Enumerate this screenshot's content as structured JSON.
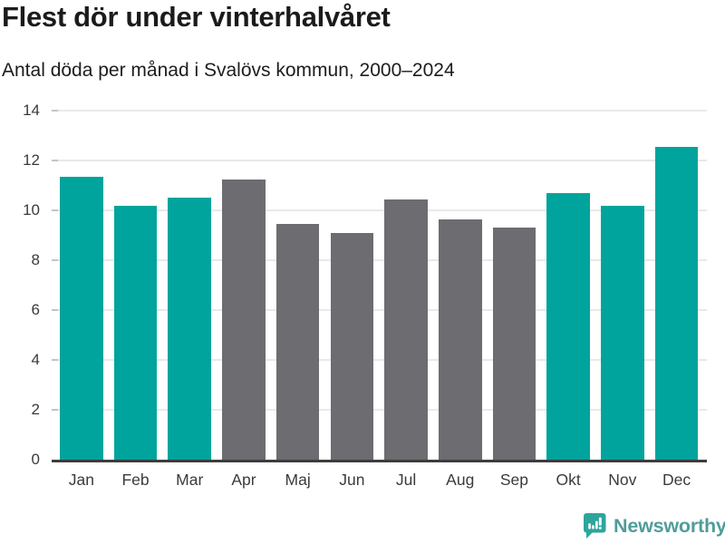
{
  "header": {
    "title": "Flest dör under vinterhalvåret",
    "subtitle": "Antal döda per månad i Svalövs kommun, 2000–2024"
  },
  "chart_data": {
    "type": "bar",
    "title": "Flest dör under vinterhalvåret",
    "subtitle": "Antal döda per månad i Svalövs kommun, 2000–2024",
    "categories": [
      "Jan",
      "Feb",
      "Mar",
      "Apr",
      "Maj",
      "Jun",
      "Jul",
      "Aug",
      "Sep",
      "Okt",
      "Nov",
      "Dec"
    ],
    "values": [
      11.35,
      10.2,
      10.5,
      11.25,
      9.45,
      9.1,
      10.45,
      9.65,
      9.3,
      10.7,
      10.2,
      12.55
    ],
    "bar_color_keys": [
      "teal",
      "teal",
      "teal",
      "gray",
      "gray",
      "gray",
      "gray",
      "gray",
      "gray",
      "teal",
      "teal",
      "teal"
    ],
    "highlighted_months": [
      "Jan",
      "Feb",
      "Mar",
      "Okt",
      "Nov",
      "Dec"
    ],
    "xlabel": "",
    "ylabel": "",
    "ylim": [
      0,
      14
    ],
    "yticks": [
      0,
      2,
      4,
      6,
      8,
      10,
      12,
      14
    ],
    "grid": "horizontal-only",
    "legend": "none"
  },
  "footer": {
    "brand": "Newsworthy",
    "brand_icon": "newsworthy-speech-bubble-barchart-icon"
  },
  "theme": {
    "bar_teal": "#00a49c",
    "bar_gray": "#6c6c71",
    "gridline": "#e9e9e9",
    "tick": "#c4c4c4",
    "axis_line": "#3d3d3d",
    "title_text": "#1b1b1b",
    "axis_text": "#3a3a3a",
    "logo_icon_fill": "#2da59d",
    "logo_glyph": "#ffffff",
    "wordmark_text": "#4f9d99"
  }
}
